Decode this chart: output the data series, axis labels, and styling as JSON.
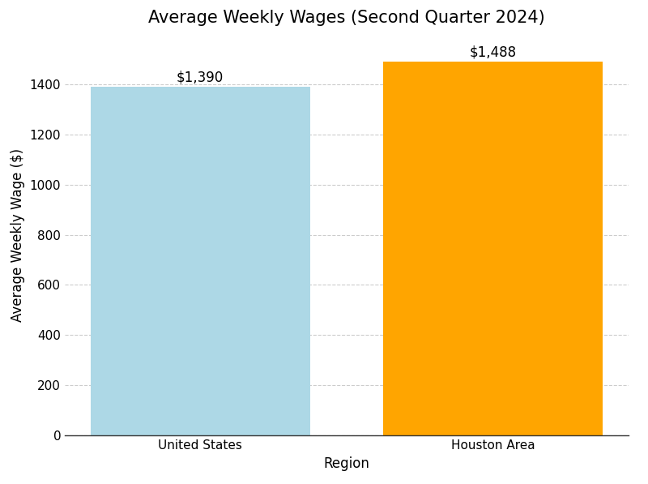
{
  "categories": [
    "United States",
    "Houston Area"
  ],
  "values": [
    1390,
    1488
  ],
  "bar_colors": [
    "#ADD8E6",
    "#FFA500"
  ],
  "bar_labels": [
    "$1,390",
    "$1,488"
  ],
  "title": "Average Weekly Wages (Second Quarter 2024)",
  "xlabel": "Region",
  "ylabel": "Average Weekly Wage ($)",
  "ylim": [
    0,
    1600
  ],
  "yticks": [
    0,
    200,
    400,
    600,
    800,
    1000,
    1200,
    1400
  ],
  "title_fontsize": 15,
  "label_fontsize": 12,
  "tick_fontsize": 11,
  "annotation_fontsize": 12,
  "background_color": "#ffffff",
  "grid_color": "#cccccc",
  "grid_linestyle": "--",
  "bar_width": 0.75
}
